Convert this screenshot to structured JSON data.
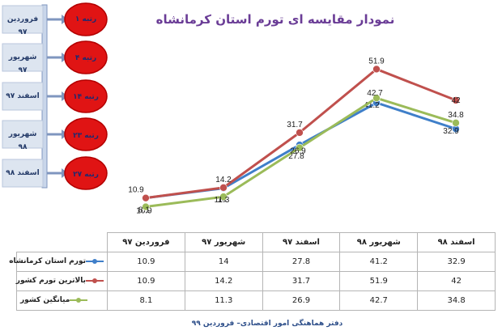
{
  "title": "نمودار مقایسه ای تورم استان کرمانشاه",
  "source_note": "دفتر هماهنگی امور اقتصادی– فروردین ۹۹",
  "rank_panel": {
    "items": [
      {
        "period": "فروردین ۹۷",
        "rank": "رتبه ۱"
      },
      {
        "period": "شهریور ۹۷",
        "rank": "رتبه ۴"
      },
      {
        "period": "اسفند ۹۷",
        "rank": "رتبه ۱۴"
      },
      {
        "period": "شهریور ۹۸",
        "rank": "رتبه ۲۳"
      },
      {
        "period": "اسفند ۹۸",
        "rank": "رتبه ۲۷"
      }
    ],
    "colors": {
      "oval": "#e01414",
      "oval_edge": "#b30000",
      "box": "#dde5f0",
      "arrow": "#7f96bf"
    }
  },
  "chart_data": {
    "type": "line",
    "title": "نمودار مقایسه ای تورم استان کرمانشاه",
    "categories": [
      "فروردین ۹۷",
      "شهریور ۹۷",
      "اسفند ۹۷",
      "شهریور ۹۸",
      "اسفند ۹۸"
    ],
    "ylim": [
      0,
      60
    ],
    "grid": false,
    "legend": "table",
    "series": [
      {
        "name": "تورم استان کرمانشاه",
        "color": "#3f7fc9",
        "values": [
          10.9,
          14,
          27.8,
          41.2,
          32.9
        ]
      },
      {
        "name": "بالاترین تورم کشور",
        "color": "#c0504d",
        "values": [
          10.9,
          14.2,
          31.7,
          51.9,
          42
        ]
      },
      {
        "name": "میانگین کشور",
        "color": "#9bbb59",
        "values": [
          8.1,
          11.3,
          26.9,
          42.7,
          34.8
        ]
      }
    ]
  }
}
